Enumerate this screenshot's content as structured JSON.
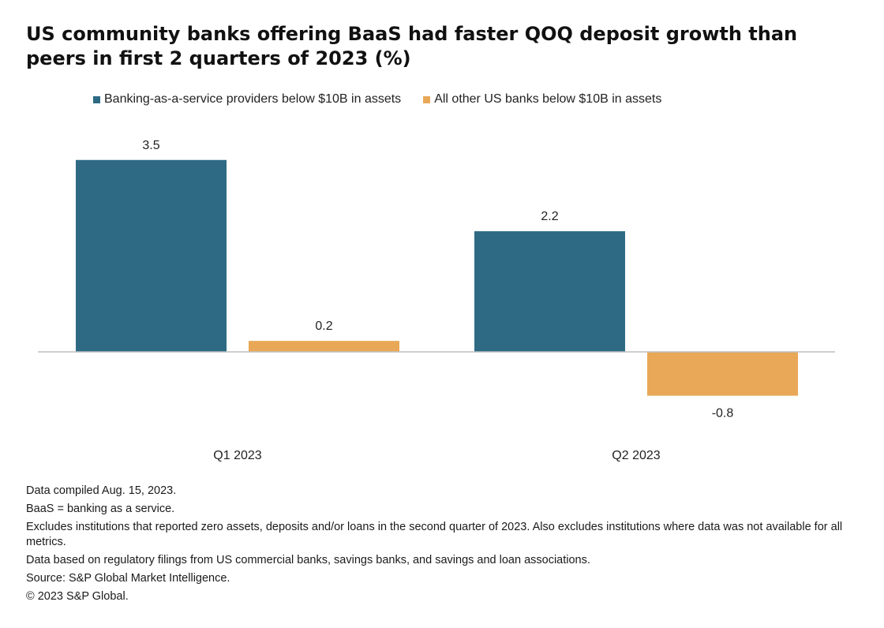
{
  "title": "US community banks offering BaaS had faster QOQ deposit growth than peers in first 2 quarters of 2023 (%)",
  "legend": {
    "items": [
      {
        "label": "Banking-as-a-service providers below $10B in assets",
        "color": "#2e6a84"
      },
      {
        "label": "All other US banks below $10B in assets",
        "color": "#e8a857"
      }
    ]
  },
  "chart_data": {
    "type": "bar",
    "title": "US community banks offering BaaS had faster QOQ deposit growth than peers in first 2 quarters of 2023 (%)",
    "categories": [
      "Q1 2023",
      "Q2 2023"
    ],
    "series": [
      {
        "name": "Banking-as-a-service providers below $10B in assets",
        "values": [
          3.5,
          2.2
        ],
        "labels": [
          "3.5",
          "2.2"
        ],
        "color": "#2e6a84"
      },
      {
        "name": "All other US banks below $10B in assets",
        "values": [
          0.2,
          -0.8
        ],
        "labels": [
          "0.2",
          "-0.8"
        ],
        "color": "#e8a857"
      }
    ],
    "xlabel": "",
    "ylabel": "",
    "ylim": [
      -1.1,
      3.7
    ],
    "grid": false,
    "legend_position": "top",
    "data_labels": true
  },
  "notes": [
    "Data compiled Aug. 15, 2023.",
    "BaaS = banking as a service.",
    "Excludes institutions that reported zero assets, deposits and/or loans in the second quarter of 2023. Also excludes institutions where data was not available for all metrics.",
    "Data based on regulatory filings from US commercial banks, savings banks, and savings and loan associations.",
    "Source: S&P Global Market Intelligence.",
    "© 2023 S&P Global."
  ]
}
